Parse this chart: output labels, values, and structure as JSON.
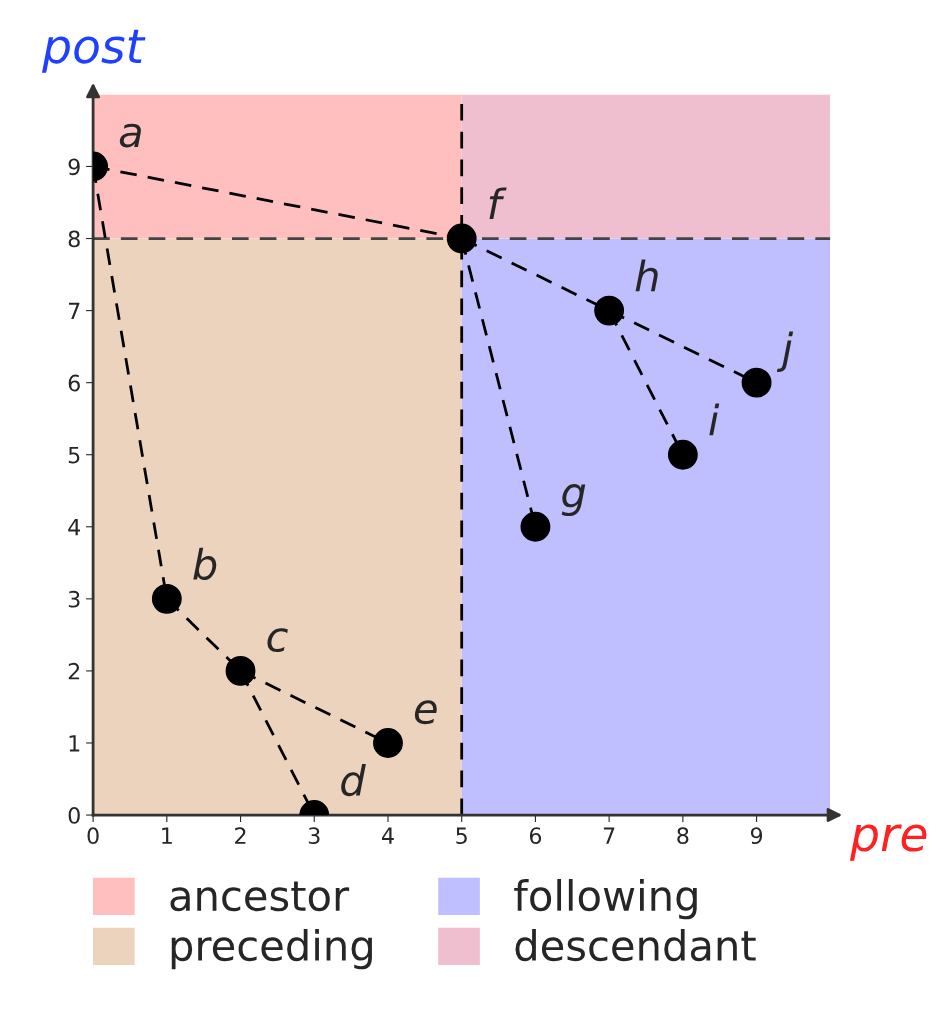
{
  "chart_data": {
    "type": "scatter",
    "xlabel": "pre",
    "ylabel": "post",
    "xlim": [
      0,
      10
    ],
    "ylim": [
      0,
      10
    ],
    "xticks": [
      0,
      1,
      2,
      3,
      4,
      5,
      6,
      7,
      8,
      9
    ],
    "yticks": [
      0,
      1,
      2,
      3,
      4,
      5,
      6,
      7,
      8,
      9
    ],
    "grid": false,
    "legend": "bottom",
    "series": [
      {
        "type": "bar",
        "name": "ancestor",
        "color": "#ffbfbf",
        "x": [
          2.5
        ],
        "base": [
          8
        ],
        "values": [
          2
        ]
      },
      {
        "type": "bar",
        "name": "preceding",
        "color": "#ecd3be",
        "x": [
          2.5
        ],
        "base": [
          0
        ],
        "values": [
          8
        ]
      },
      {
        "type": "bar",
        "name": "following",
        "color": "#bfbfff",
        "x": [
          7.5
        ],
        "base": [
          0
        ],
        "values": [
          8
        ]
      },
      {
        "type": "bar",
        "name": "descendant",
        "color": "#efbfcf",
        "x": [
          7.5
        ],
        "base": [
          8
        ],
        "values": [
          2
        ]
      },
      {
        "type": "line",
        "color": "#000000",
        "line_style": "dashed",
        "x": [
          0,
          5
        ],
        "values": [
          9,
          8
        ]
      },
      {
        "type": "line",
        "color": "#000000",
        "line_style": "dashed",
        "x": [
          0,
          1
        ],
        "values": [
          9,
          3
        ]
      },
      {
        "type": "line",
        "color": "#000000",
        "line_style": "dashed",
        "x": [
          1,
          2
        ],
        "values": [
          3,
          2
        ]
      },
      {
        "type": "line",
        "color": "#000000",
        "line_style": "dashed",
        "x": [
          2,
          4
        ],
        "values": [
          2,
          1
        ]
      },
      {
        "type": "line",
        "color": "#000000",
        "line_style": "dashed",
        "x": [
          2,
          3
        ],
        "values": [
          2,
          0
        ]
      },
      {
        "type": "line",
        "color": "#000000",
        "line_style": "dashed",
        "x": [
          5,
          6
        ],
        "values": [
          8,
          4
        ]
      },
      {
        "type": "line",
        "color": "#000000",
        "line_style": "dashed",
        "x": [
          5,
          7
        ],
        "values": [
          8,
          7
        ]
      },
      {
        "type": "line",
        "color": "#000000",
        "line_style": "dashed",
        "x": [
          7,
          9
        ],
        "values": [
          7,
          6
        ]
      },
      {
        "type": "line",
        "color": "#000000",
        "line_style": "dashed",
        "x": [
          7,
          8
        ],
        "values": [
          7,
          5
        ]
      },
      {
        "color": "#000000",
        "marker": "circle",
        "x": [
          0,
          1,
          2,
          3,
          4,
          5,
          6,
          7,
          8,
          9
        ],
        "values": [
          9,
          3,
          2,
          0,
          1,
          8,
          4,
          7,
          5,
          6
        ]
      }
    ],
    "ref_lines": [
      {
        "axis": "x",
        "value": 5,
        "color": "#000000",
        "line_style": "dashed"
      },
      {
        "axis": "y",
        "value": 8,
        "color": "#444444",
        "line_style": "dashed"
      }
    ],
    "annotations": [
      {
        "text": "a",
        "x": 0,
        "y": 9
      },
      {
        "text": "b",
        "x": 1,
        "y": 3
      },
      {
        "text": "c",
        "x": 2,
        "y": 2
      },
      {
        "text": "d",
        "x": 3,
        "y": 0
      },
      {
        "text": "e",
        "x": 4,
        "y": 1
      },
      {
        "text": "f",
        "x": 5,
        "y": 8
      },
      {
        "text": "g",
        "x": 6,
        "y": 4
      },
      {
        "text": "h",
        "x": 7,
        "y": 7
      },
      {
        "text": "i",
        "x": 8,
        "y": 5
      },
      {
        "text": "j",
        "x": 9,
        "y": 6
      }
    ]
  }
}
